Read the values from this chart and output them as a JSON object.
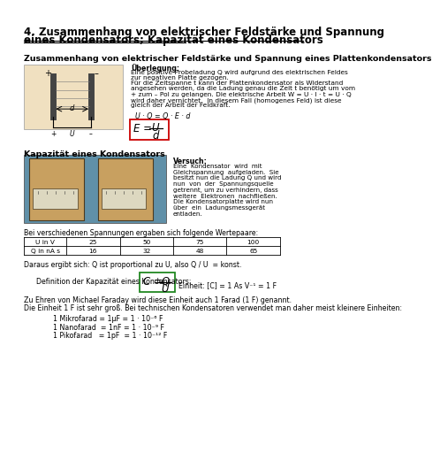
{
  "title_line1": "4. Zusammenhang von elektrischer Feldstärke und Spannung",
  "title_line2": "eines Kondensators; Kapazität eines Kondensators",
  "section1_heading": "Zusammenhang von elektrischer Feldstärke und Spannung eines Plattenkondensators",
  "ueberlegung_bold": "Überlegung:",
  "ueberlegung_lines": [
    "Eine positive Probeladung Q wird aufgrund des elektrischen Feldes",
    "zur negativen Platte gezogen.",
    "Für die Zeitspanne t kann der Plattenkondensator als Widerstand",
    "angesehen werden, da die Ladung genau die Zeit t benötigt um vom",
    "+ zum – Pol zu gelangen. Die elektrische Arbeit W = U · I · t = U · Q",
    "wird daher vernichtet.  In diesem Fall (homogenes Feld) ist diese",
    "gleich der Arbeit der Feldkraft."
  ],
  "formula1_pre": "U · Q = Q · E · d",
  "section2_heading": "Kapazität eines Kondensators",
  "versuch_bold": "Versuch:",
  "versuch_lines": [
    "Eine  Kondensator  wird  mit",
    "Gleichspannung  aufgeladen.  Sie",
    "besitzt nun die Ladung Q und wird",
    "nun  von  der  Spannungsquelle",
    "getrennt, um zu verhindern, dass",
    "weitere  Elektronen  nachfließen.",
    "Die Kondensatorplatte wird nun",
    "über  ein  Ladungsmessgerät",
    "entladen."
  ],
  "table_intro": "Bei verschiedenen Spannungen ergaben sich folgende Wertepaare:",
  "table_row1_label": "U in V",
  "table_row1_vals": [
    "25",
    "50",
    "75",
    "100"
  ],
  "table_row2_label": "Q in nA s",
  "table_row2_vals": [
    "16",
    "32",
    "48",
    "65"
  ],
  "proportional_text": "Daraus ergibt sich: Q ist proportional zu U, also Q / U  = konst.",
  "definition_pre": "Definition der Kapazität eines Kondensators:",
  "definition_post": "Einheit: [C] = 1 As V⁻¹ = 1 F",
  "faraday_text": "Zu Ehren von Michael Faraday wird diese Einheit auch 1 Farad (1 F) genannt.",
  "einheit_note": "Die Einheit 1 F ist sehr groß. Bei technischen Kondensatoren verwendet man daher meist kleinere Einheiten:",
  "einheit1": "1 Mikrofarad = 1μF = 1 · 10⁻⁶ F",
  "einheit2": "1 Nanofarad  = 1nF = 1 · 10⁻⁹ F",
  "einheit3": "1 Pikofarad   = 1pF  = 1 · 10⁻¹² F",
  "bg_color": "#ffffff",
  "text_color": "#000000",
  "box_color_E": "#cc0000",
  "box_color_C": "#228822",
  "plate_bg": "#f0e0c0",
  "photo_bg": "#6090a8"
}
